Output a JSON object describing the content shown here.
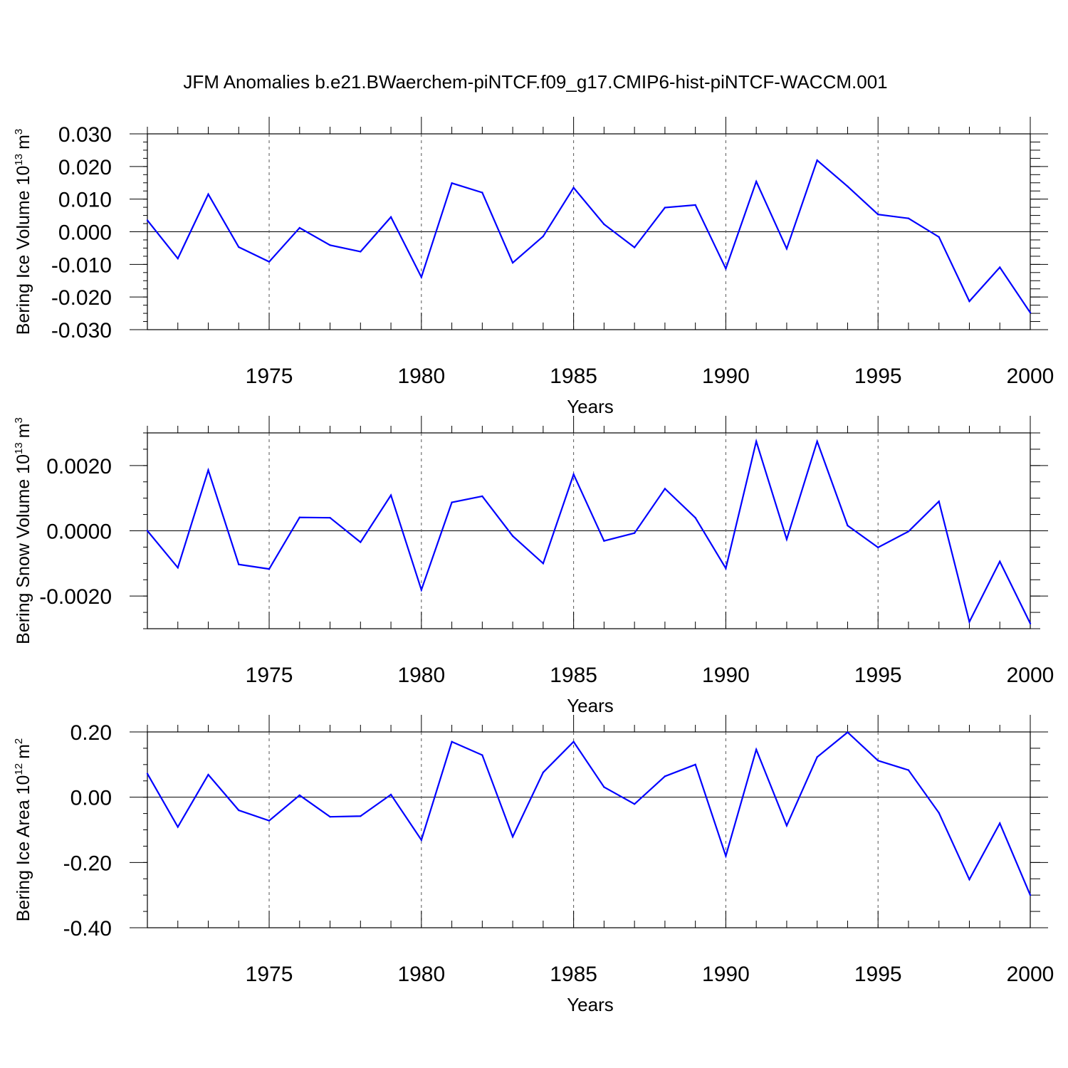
{
  "chart_data": {
    "type": "line",
    "title": "JFM Anomalies b.e21.BWaerchem-piNTCF.f09_g17.CMIP6-hist-piNTCF-WACCM.001",
    "series_color": "#0000ff",
    "x": [
      1971,
      1972,
      1973,
      1974,
      1975,
      1976,
      1977,
      1978,
      1979,
      1980,
      1981,
      1982,
      1983,
      1984,
      1985,
      1986,
      1987,
      1988,
      1989,
      1990,
      1991,
      1992,
      1993,
      1994,
      1995,
      1996,
      1997,
      1998,
      1999,
      2000
    ],
    "xlim": [
      1971,
      2000
    ],
    "panels": [
      {
        "name": "ice-volume",
        "ylabel": "Bering Ice Volume 10",
        "ylabel_exp": "13",
        "ylabel_unit": "m",
        "ylabel_unit_exp": "3",
        "xlabel": "Years",
        "ylim": [
          -0.03,
          0.03
        ],
        "yticks": [
          0.03,
          0.02,
          0.01,
          0.0,
          -0.01,
          -0.02,
          -0.03
        ],
        "ytick_labels": [
          "0.030",
          "0.020",
          "0.010",
          "0.000",
          "-0.010",
          "-0.020",
          "-0.030"
        ],
        "xtick_labels": [
          "1975",
          "1980",
          "1985",
          "1990",
          "1995",
          "2000"
        ],
        "values": [
          0.0035,
          -0.0082,
          0.0115,
          -0.0047,
          -0.0092,
          0.0012,
          -0.0041,
          -0.0061,
          0.0045,
          -0.0139,
          0.0149,
          0.012,
          -0.0095,
          -0.0014,
          0.0135,
          0.0023,
          -0.0048,
          0.0074,
          0.0082,
          -0.0113,
          0.0154,
          -0.0052,
          0.0219,
          0.0139,
          0.0053,
          0.0041,
          -0.0016,
          -0.0213,
          -0.0109,
          -0.0248
        ]
      },
      {
        "name": "snow-volume",
        "ylabel": "Bering Snow Volume 10",
        "ylabel_exp": "13",
        "ylabel_unit": "m",
        "ylabel_unit_exp": "3",
        "xlabel": "Years",
        "ylim": [
          -0.003,
          0.003
        ],
        "yticks": [
          0.002,
          0.0,
          -0.002
        ],
        "ytick_labels": [
          "0.0020",
          "0.0000",
          "-0.0020"
        ],
        "xtick_labels": [
          "1975",
          "1980",
          "1985",
          "1990",
          "1995",
          "2000"
        ],
        "values": [
          0.0,
          -0.00113,
          0.00186,
          -0.00103,
          -0.00117,
          0.00041,
          0.0004,
          -0.00035,
          0.00109,
          -0.00181,
          0.00087,
          0.00106,
          -0.00016,
          -0.001,
          0.00173,
          -0.00031,
          -7e-05,
          0.00129,
          0.0004,
          -0.00115,
          0.00274,
          -0.00026,
          0.00274,
          0.00016,
          -0.00051,
          -2e-05,
          0.0009,
          -0.00279,
          -0.00094,
          -0.00284
        ]
      },
      {
        "name": "ice-area",
        "ylabel": "Bering Ice Area 10",
        "ylabel_exp": "12",
        "ylabel_unit": "m",
        "ylabel_unit_exp": "2",
        "xlabel": "Years",
        "ylim": [
          -0.4,
          0.2
        ],
        "yticks": [
          0.2,
          0.0,
          -0.2,
          -0.4
        ],
        "ytick_labels": [
          "0.20",
          "0.00",
          "-0.20",
          "-0.40"
        ],
        "xtick_labels": [
          "1975",
          "1980",
          "1985",
          "1990",
          "1995",
          "2000"
        ],
        "values": [
          0.072,
          -0.091,
          0.069,
          -0.04,
          -0.072,
          0.006,
          -0.06,
          -0.058,
          0.008,
          -0.131,
          0.17,
          0.129,
          -0.121,
          0.076,
          0.17,
          0.031,
          -0.021,
          0.064,
          0.1,
          -0.18,
          0.146,
          -0.087,
          0.123,
          0.199,
          0.112,
          0.083,
          -0.048,
          -0.252,
          -0.08,
          -0.3
        ]
      }
    ]
  }
}
